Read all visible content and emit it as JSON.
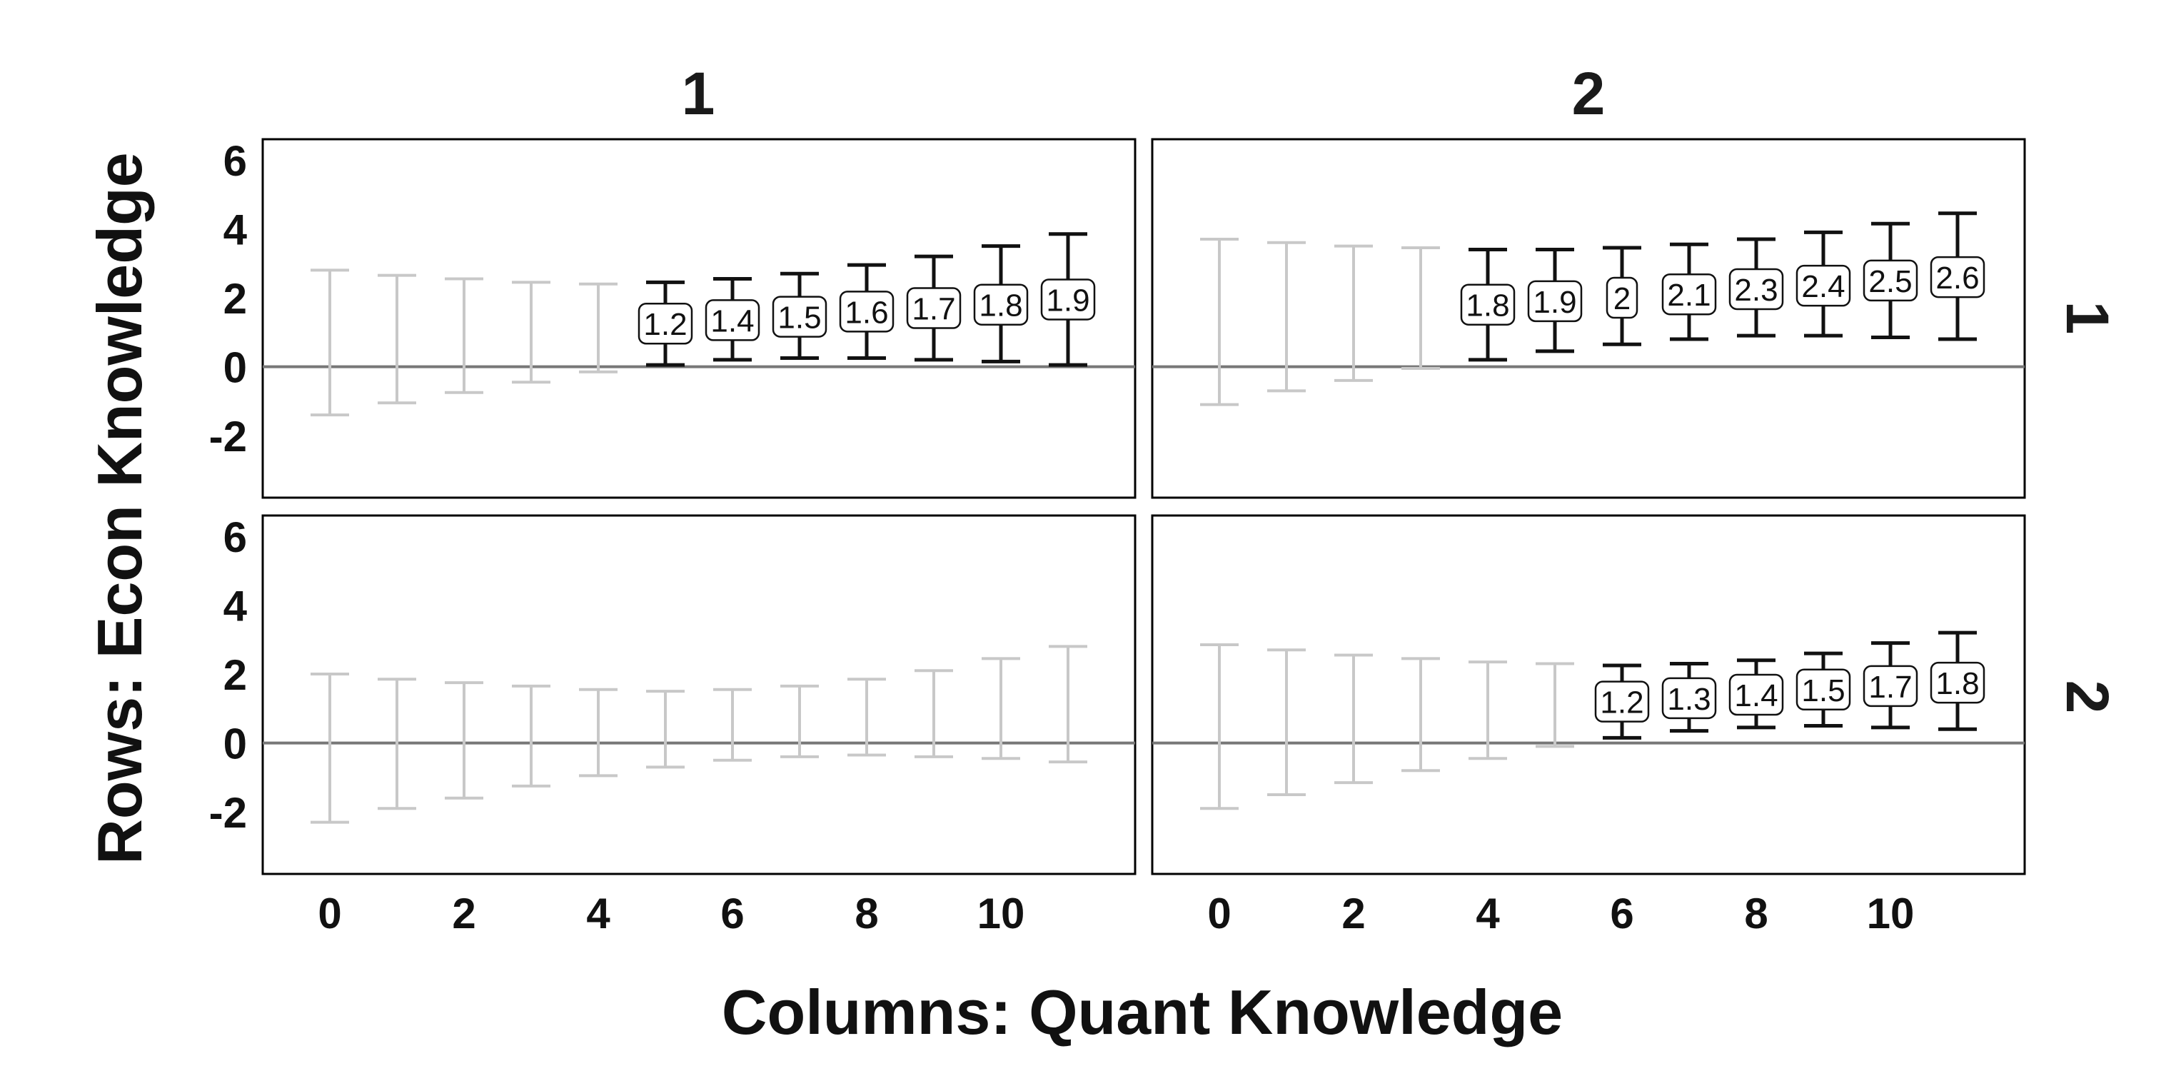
{
  "chart_data": {
    "type": "errorbar-facet",
    "xlabel": "Columns: Quant Knowledge",
    "ylabel": "Rows: Econ Knowledge",
    "column_labels": [
      "1",
      "2"
    ],
    "row_labels": [
      "1",
      "2"
    ],
    "x_ticks": [
      0,
      2,
      4,
      6,
      8,
      10
    ],
    "x_tick_labels": [
      "0",
      "2",
      "4",
      "6",
      "8",
      "10"
    ],
    "xlim": [
      -1,
      12
    ],
    "y_ticks": [
      -2,
      0,
      2,
      4,
      6
    ],
    "y_tick_labels": [
      "-2",
      "0",
      "2",
      "4",
      "6"
    ],
    "ylim": [
      -3.8,
      6.6
    ],
    "colors": {
      "significant": "#111111",
      "nonsignificant": "#c8c8c8",
      "zero_line": "#777777"
    },
    "panels": [
      {
        "row": "1",
        "column": "1",
        "points": [
          {
            "x": 0,
            "low": -1.4,
            "high": 2.8,
            "sig": false
          },
          {
            "x": 1,
            "low": -1.05,
            "high": 2.65,
            "sig": false
          },
          {
            "x": 2,
            "low": -0.75,
            "high": 2.55,
            "sig": false
          },
          {
            "x": 3,
            "low": -0.45,
            "high": 2.45,
            "sig": false
          },
          {
            "x": 4,
            "low": -0.15,
            "high": 2.4,
            "sig": false
          },
          {
            "x": 5,
            "low": 0.05,
            "high": 2.45,
            "sig": true,
            "label": "1.2",
            "est": 1.25
          },
          {
            "x": 6,
            "low": 0.2,
            "high": 2.55,
            "sig": true,
            "label": "1.4",
            "est": 1.35
          },
          {
            "x": 7,
            "low": 0.25,
            "high": 2.7,
            "sig": true,
            "label": "1.5",
            "est": 1.45
          },
          {
            "x": 8,
            "low": 0.25,
            "high": 2.95,
            "sig": true,
            "label": "1.6",
            "est": 1.6
          },
          {
            "x": 9,
            "low": 0.2,
            "high": 3.2,
            "sig": true,
            "label": "1.7",
            "est": 1.7
          },
          {
            "x": 10,
            "low": 0.15,
            "high": 3.5,
            "sig": true,
            "label": "1.8",
            "est": 1.8
          },
          {
            "x": 11,
            "low": 0.05,
            "high": 3.85,
            "sig": true,
            "label": "1.9",
            "est": 1.95
          }
        ]
      },
      {
        "row": "1",
        "column": "2",
        "points": [
          {
            "x": 0,
            "low": -1.1,
            "high": 3.7,
            "sig": false
          },
          {
            "x": 1,
            "low": -0.7,
            "high": 3.6,
            "sig": false
          },
          {
            "x": 2,
            "low": -0.4,
            "high": 3.5,
            "sig": false
          },
          {
            "x": 3,
            "low": -0.05,
            "high": 3.45,
            "sig": false
          },
          {
            "x": 4,
            "low": 0.2,
            "high": 3.4,
            "sig": true,
            "label": "1.8",
            "est": 1.8
          },
          {
            "x": 5,
            "low": 0.45,
            "high": 3.4,
            "sig": true,
            "label": "1.9",
            "est": 1.9
          },
          {
            "x": 6,
            "low": 0.65,
            "high": 3.45,
            "sig": true,
            "label": "2",
            "est": 2.0
          },
          {
            "x": 7,
            "low": 0.8,
            "high": 3.55,
            "sig": true,
            "label": "2.1",
            "est": 2.1
          },
          {
            "x": 8,
            "low": 0.9,
            "high": 3.7,
            "sig": true,
            "label": "2.3",
            "est": 2.25
          },
          {
            "x": 9,
            "low": 0.9,
            "high": 3.9,
            "sig": true,
            "label": "2.4",
            "est": 2.35
          },
          {
            "x": 10,
            "low": 0.85,
            "high": 4.15,
            "sig": true,
            "label": "2.5",
            "est": 2.5
          },
          {
            "x": 11,
            "low": 0.8,
            "high": 4.45,
            "sig": true,
            "label": "2.6",
            "est": 2.6
          }
        ]
      },
      {
        "row": "2",
        "column": "1",
        "points": [
          {
            "x": 0,
            "low": -2.3,
            "high": 2.0,
            "sig": false
          },
          {
            "x": 1,
            "low": -1.9,
            "high": 1.85,
            "sig": false
          },
          {
            "x": 2,
            "low": -1.6,
            "high": 1.75,
            "sig": false
          },
          {
            "x": 3,
            "low": -1.25,
            "high": 1.65,
            "sig": false
          },
          {
            "x": 4,
            "low": -0.95,
            "high": 1.55,
            "sig": false
          },
          {
            "x": 5,
            "low": -0.7,
            "high": 1.5,
            "sig": false
          },
          {
            "x": 6,
            "low": -0.5,
            "high": 1.55,
            "sig": false
          },
          {
            "x": 7,
            "low": -0.4,
            "high": 1.65,
            "sig": false
          },
          {
            "x": 8,
            "low": -0.35,
            "high": 1.85,
            "sig": false
          },
          {
            "x": 9,
            "low": -0.4,
            "high": 2.1,
            "sig": false
          },
          {
            "x": 10,
            "low": -0.45,
            "high": 2.45,
            "sig": false
          },
          {
            "x": 11,
            "low": -0.55,
            "high": 2.8,
            "sig": false
          }
        ]
      },
      {
        "row": "2",
        "column": "2",
        "points": [
          {
            "x": 0,
            "low": -1.9,
            "high": 2.85,
            "sig": false
          },
          {
            "x": 1,
            "low": -1.5,
            "high": 2.7,
            "sig": false
          },
          {
            "x": 2,
            "low": -1.15,
            "high": 2.55,
            "sig": false
          },
          {
            "x": 3,
            "low": -0.8,
            "high": 2.45,
            "sig": false
          },
          {
            "x": 4,
            "low": -0.45,
            "high": 2.35,
            "sig": false
          },
          {
            "x": 5,
            "low": -0.1,
            "high": 2.3,
            "sig": false
          },
          {
            "x": 6,
            "low": 0.15,
            "high": 2.25,
            "sig": true,
            "label": "1.2",
            "est": 1.2
          },
          {
            "x": 7,
            "low": 0.35,
            "high": 2.3,
            "sig": true,
            "label": "1.3",
            "est": 1.3
          },
          {
            "x": 8,
            "low": 0.45,
            "high": 2.4,
            "sig": true,
            "label": "1.4",
            "est": 1.4
          },
          {
            "x": 9,
            "low": 0.5,
            "high": 2.6,
            "sig": true,
            "label": "1.5",
            "est": 1.55
          },
          {
            "x": 10,
            "low": 0.45,
            "high": 2.9,
            "sig": true,
            "label": "1.7",
            "est": 1.65
          },
          {
            "x": 11,
            "low": 0.4,
            "high": 3.2,
            "sig": true,
            "label": "1.8",
            "est": 1.75
          }
        ]
      }
    ]
  }
}
